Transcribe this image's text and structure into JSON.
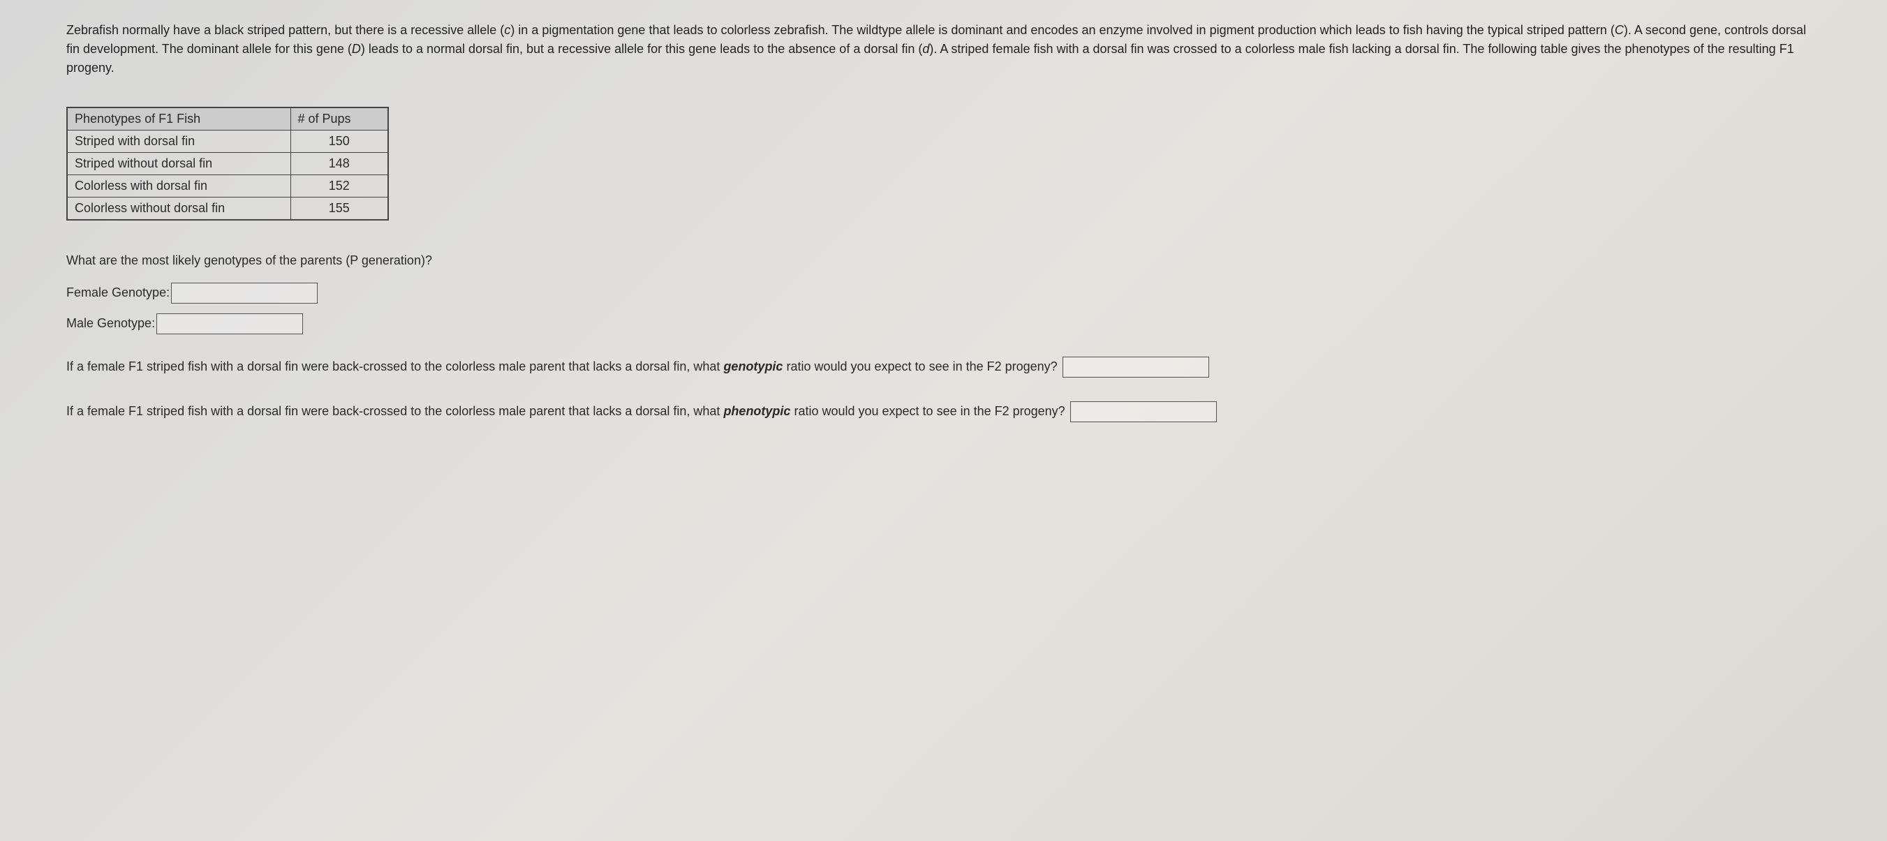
{
  "problem_text": {
    "p1_part1": "Zebrafish normally have a black striped pattern, but there is a recessive allele (",
    "p1_c_italic": "c",
    "p1_part2": ") in a pigmentation gene that leads to colorless zebrafish. The wildtype allele is dominant and encodes an enzyme involved in pigment production which leads to fish having the typical striped pattern (",
    "p1_C_italic": "C",
    "p1_part3": "). A second gene, controls dorsal fin development. The dominant allele for this gene (",
    "p1_D_italic": "D",
    "p1_part4": ") leads to a normal dorsal fin, but a recessive allele for this gene leads to the absence of a dorsal fin (",
    "p1_d_italic": "d",
    "p1_part5": "). A striped female fish with a dorsal fin was crossed to a colorless male fish lacking a dorsal fin. The following table gives the phenotypes of the resulting F1 progeny."
  },
  "table": {
    "header_phenotype": "Phenotypes of F1 Fish",
    "header_count": "# of Pups",
    "rows": [
      {
        "phenotype": "Striped with dorsal fin",
        "count": "150"
      },
      {
        "phenotype": "Striped without dorsal fin",
        "count": "148"
      },
      {
        "phenotype": "Colorless with dorsal fin",
        "count": "152"
      },
      {
        "phenotype": "Colorless without dorsal fin",
        "count": "155"
      }
    ]
  },
  "questions": {
    "q1_text": "What are the most likely genotypes of the parents (P generation)?",
    "female_label": "Female Genotype:",
    "male_label": "Male Genotype:",
    "q2_part1": "If a female F1 striped fish with a dorsal fin were back-crossed to the colorless male parent that lacks a dorsal fin, what ",
    "q2_emphasis": "genotypic",
    "q2_part2": " ratio would you expect to see in the F2 progeny?",
    "q3_part1": "If a female F1 striped fish with a dorsal fin were back-crossed to the colorless male parent that lacks a dorsal fin, what ",
    "q3_emphasis": "phenotypic",
    "q3_part2": " ratio would you expect to see in the F2 progeny?"
  },
  "inputs": {
    "female_value": "",
    "male_value": "",
    "f2_genotypic_value": "",
    "f2_phenotypic_value": ""
  }
}
